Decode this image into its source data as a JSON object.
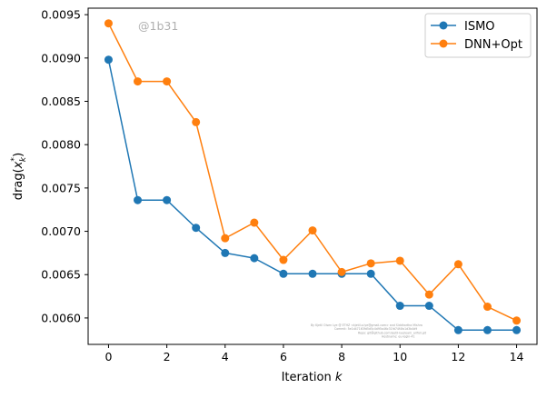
{
  "chart_data": {
    "type": "line",
    "x": [
      0,
      1,
      2,
      3,
      4,
      5,
      6,
      7,
      8,
      9,
      10,
      11,
      12,
      13,
      14
    ],
    "series": [
      {
        "name": "ISMO",
        "color": "#1f77b4",
        "values": [
          0.00898,
          0.00736,
          0.00736,
          0.00704,
          0.00675,
          0.00669,
          0.00651,
          0.00651,
          0.00651,
          0.00651,
          0.00614,
          0.00614,
          0.00586,
          0.00586,
          0.00586
        ]
      },
      {
        "name": "DNN+Opt",
        "color": "#ff7f0e",
        "values": [
          0.0094,
          0.00873,
          0.00873,
          0.00826,
          0.00692,
          0.0071,
          0.00667,
          0.00701,
          0.00653,
          0.00663,
          0.00666,
          0.00627,
          0.00662,
          0.00613,
          0.00597
        ]
      }
    ],
    "xlabel_prefix": "Iteration ",
    "xlabel_var": "k",
    "ylabel_prefix": "drag(",
    "ylabel_var": "x",
    "ylabel_sub": "k",
    "ylabel_sup": "*",
    "ylabel_suffix": ")",
    "xlim": [
      -0.7,
      14.7
    ],
    "ylim": [
      0.005695,
      0.009575
    ],
    "xticks": [
      0,
      2,
      4,
      6,
      8,
      10,
      12,
      14
    ],
    "xtick_labels": [
      "0",
      "2",
      "4",
      "6",
      "8",
      "10",
      "12",
      "14"
    ],
    "yticks": [
      0.006,
      0.0065,
      0.007,
      0.0075,
      0.008,
      0.0085,
      0.009,
      0.0095
    ],
    "ytick_labels": [
      "0.0060",
      "0.0065",
      "0.0070",
      "0.0075",
      "0.0080",
      "0.0085",
      "0.0090",
      "0.0095"
    ],
    "grid": false,
    "legend_position": "top-right",
    "watermark": "@1b31",
    "credit_lines": [
      "By Kjetil Olsen Lye @ ETHZ <kjetil.o.lye@gmail.com> and Siddhartha Mishra",
      "Commit: 5e1d47163fd5d5c4d95a46c31fd74f4fa1d3b4d9",
      "Repo: git@github.com:kjetil-lye/learn_airfoil.git",
      "Hostname: eu-login-41"
    ]
  }
}
